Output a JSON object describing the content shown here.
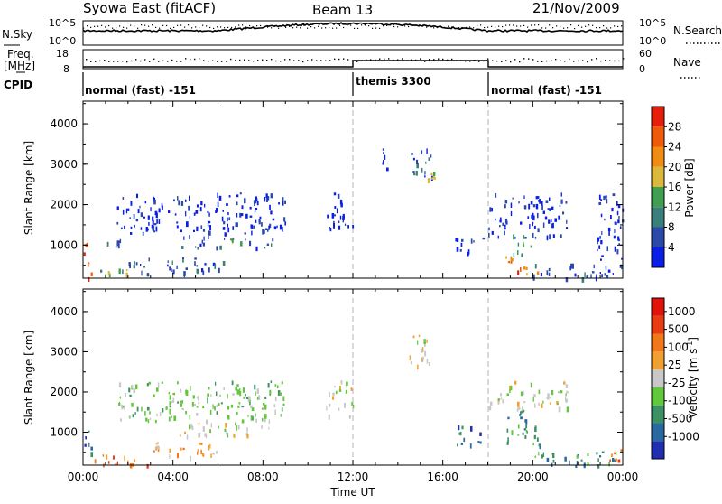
{
  "header": {
    "station": "Syowa East (fitACF)",
    "beam": "Beam 13",
    "date": "21/Nov/2009"
  },
  "top_panels": {
    "noise_label_left_1": "N.Sky",
    "noise_ticks_left": [
      "10^5",
      "10^0"
    ],
    "noise_label_right": "N.Search",
    "noise_ticks_right": [
      "10^5",
      "10^0"
    ],
    "freq_label_line1": "Freq.",
    "freq_label_line2": "[MHz]",
    "freq_ticks": [
      "18",
      "8"
    ],
    "nave_label": "Nave",
    "nave_ticks": [
      "60",
      "0"
    ],
    "cpid_label": "CPID"
  },
  "cpid_segments": [
    {
      "label": "normal (fast) -151",
      "start_h": 0,
      "end_h": 12
    },
    {
      "label": "themis 3300",
      "start_h": 12,
      "end_h": 18
    },
    {
      "label": "normal (fast) -151",
      "start_h": 18,
      "end_h": 24
    }
  ],
  "colorbars": {
    "power": {
      "label": "Power [dB]",
      "ticks": [
        "4",
        "8",
        "12",
        "16",
        "20",
        "24",
        "28"
      ],
      "colors": [
        "#0a1ee6",
        "#2a49a8",
        "#3a7f7a",
        "#3f9e50",
        "#dab83a",
        "#f08c14",
        "#ee5a0a",
        "#e41e0a"
      ]
    },
    "velocity": {
      "label": "Velocity [m s",
      "label_sup": "-1",
      "label_end": "]",
      "ticks": [
        "1000",
        "500",
        "100",
        "25",
        "-25",
        "-100",
        "-500",
        "-1000"
      ],
      "colors": [
        "#1f2fb0",
        "#2a69a0",
        "#3b9064",
        "#60c83a",
        "#c8c8c8",
        "#f0a030",
        "#f07818",
        "#e83c14",
        "#e0140a"
      ]
    }
  },
  "chart_data": [
    {
      "type": "heatmap",
      "panel": "power",
      "ylabel": "Slant Range [km]",
      "yticks": [
        1000,
        2000,
        3000,
        4000
      ],
      "ylim": [
        180,
        4560
      ],
      "xlim": [
        0,
        24
      ],
      "regions": [
        {
          "x0": 0.0,
          "x1": 0.35,
          "y0": 180,
          "y1": 1100,
          "level": 6
        },
        {
          "x0": 0.3,
          "x1": 2.0,
          "y0": 200,
          "y1": 420,
          "level": 3
        },
        {
          "x0": 1.0,
          "x1": 1.8,
          "y0": 900,
          "y1": 1150,
          "level": 1
        },
        {
          "x0": 2.0,
          "x1": 6.5,
          "y0": 300,
          "y1": 700,
          "level": 1
        },
        {
          "x0": 4.3,
          "x1": 6.3,
          "y0": 930,
          "y1": 1250,
          "level": 1
        },
        {
          "x0": 6.5,
          "x1": 7.0,
          "y0": 1050,
          "y1": 1300,
          "level": 3
        },
        {
          "x0": 7.0,
          "x1": 8.6,
          "y0": 950,
          "y1": 1200,
          "level": 1
        },
        {
          "x0": 1.5,
          "x1": 9.0,
          "y0": 1300,
          "y1": 2300,
          "level": 0
        },
        {
          "x0": 10.8,
          "x1": 12.0,
          "y0": 1400,
          "y1": 2300,
          "level": 0
        },
        {
          "x0": 14.5,
          "x1": 15.5,
          "y0": 2650,
          "y1": 3450,
          "level": 1
        },
        {
          "x0": 15.3,
          "x1": 15.6,
          "y0": 2600,
          "y1": 2900,
          "level": 4
        },
        {
          "x0": 13.3,
          "x1": 13.6,
          "y0": 2800,
          "y1": 3400,
          "level": 0
        },
        {
          "x0": 16.5,
          "x1": 17.8,
          "y0": 800,
          "y1": 1200,
          "level": 0
        },
        {
          "x0": 18.0,
          "x1": 21.5,
          "y0": 1200,
          "y1": 2300,
          "level": 0
        },
        {
          "x0": 19.1,
          "x1": 19.9,
          "y0": 750,
          "y1": 1300,
          "level": 3
        },
        {
          "x0": 18.6,
          "x1": 19.3,
          "y0": 600,
          "y1": 800,
          "level": 5
        },
        {
          "x0": 19.2,
          "x1": 20.5,
          "y0": 260,
          "y1": 480,
          "level": 6
        },
        {
          "x0": 20.0,
          "x1": 24.0,
          "y0": 180,
          "y1": 550,
          "level": 1
        },
        {
          "x0": 22.8,
          "x1": 24.0,
          "y0": 600,
          "y1": 2300,
          "level": 0
        }
      ]
    },
    {
      "type": "heatmap",
      "panel": "velocity",
      "ylabel": "Slant Range [km]",
      "yticks": [
        1000,
        2000,
        3000,
        4000
      ],
      "ylim": [
        180,
        4560
      ],
      "xlim": [
        0,
        24
      ],
      "xlabel": "Time UT",
      "xticks": [
        "00:00",
        "04:00",
        "08:00",
        "12:00",
        "16:00",
        "20:00",
        "00:00"
      ],
      "regions": [
        {
          "x0": 0.0,
          "x1": 0.35,
          "y0": 180,
          "y1": 1100,
          "level": 1
        },
        {
          "x0": 0.3,
          "x1": 3.0,
          "y0": 200,
          "y1": 450,
          "level": 6
        },
        {
          "x0": 3.0,
          "x1": 6.0,
          "y0": 400,
          "y1": 800,
          "level": 5
        },
        {
          "x0": 4.3,
          "x1": 8.6,
          "y0": 930,
          "y1": 1250,
          "level": 4
        },
        {
          "x0": 1.5,
          "x1": 9.0,
          "y0": 1300,
          "y1": 2300,
          "level": 3
        },
        {
          "x0": 10.8,
          "x1": 12.0,
          "y0": 1400,
          "y1": 2300,
          "level": 4
        },
        {
          "x0": 14.5,
          "x1": 15.5,
          "y0": 2650,
          "y1": 3450,
          "level": 4
        },
        {
          "x0": 16.5,
          "x1": 17.8,
          "y0": 700,
          "y1": 1200,
          "level": 1
        },
        {
          "x0": 18.8,
          "x1": 20.3,
          "y0": 700,
          "y1": 1600,
          "level": 2
        },
        {
          "x0": 18.0,
          "x1": 21.5,
          "y0": 1600,
          "y1": 2300,
          "level": 4
        },
        {
          "x0": 20.0,
          "x1": 24.0,
          "y0": 180,
          "y1": 550,
          "level": 2
        },
        {
          "x0": 23.3,
          "x1": 24.0,
          "y0": 300,
          "y1": 600,
          "level": 6
        }
      ]
    }
  ]
}
